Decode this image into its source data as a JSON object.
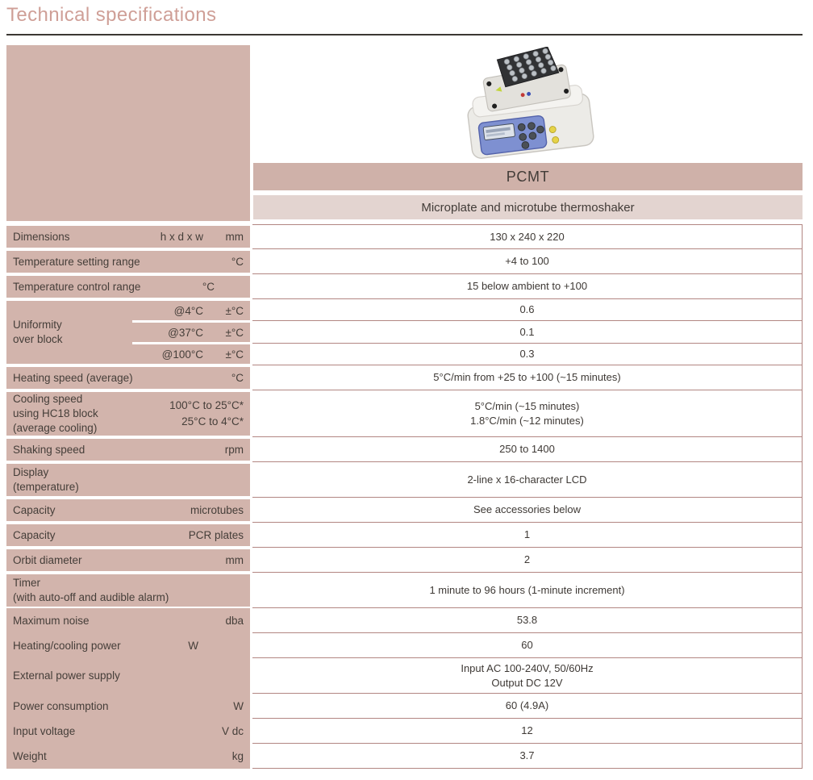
{
  "page": {
    "title": "Technical specifications"
  },
  "product": {
    "name": "PCMT",
    "subtitle": "Microplate and microtube thermoshaker",
    "image": "thermoshaker-photo"
  },
  "colors": {
    "label_bg": "#d2b4ac",
    "band_dark_bg": "#cfb1a9",
    "band_light_bg": "#e3d4d0",
    "cell_border": "#b28682",
    "title_text": "#cf9f97",
    "text": "#423c38"
  },
  "table": {
    "rows": [
      {
        "label_lines": [
          "Dimensions"
        ],
        "unit1": "h x d x w",
        "unit2": "mm",
        "value_lines": [
          "130 x 240 x 220"
        ]
      },
      {
        "label_lines": [
          "Temperature setting range"
        ],
        "unit2": "°C",
        "value_lines": [
          "+4 to 100"
        ]
      },
      {
        "label_lines": [
          "Temperature control range"
        ],
        "unit2": "°C",
        "shift": 36,
        "value_lines": [
          "15 below ambient to +100"
        ]
      },
      {
        "label_lines": [
          "Uniformity",
          "over block"
        ],
        "subrows": [
          {
            "unit1": "@4°C",
            "unit2": "±°C",
            "value": "0.6"
          },
          {
            "unit1": "@37°C",
            "unit2": "±°C",
            "value": "0.1"
          },
          {
            "unit1": "@100°C",
            "unit2": "±°C",
            "value": "0.3"
          }
        ]
      },
      {
        "label_lines": [
          "Heating speed (average)"
        ],
        "unit2": "°C",
        "value_lines": [
          "5°C/min from +25 to +100 (~15 minutes)"
        ]
      },
      {
        "label_lines": [
          "Cooling speed",
          "using HC18 block",
          "(average cooling)"
        ],
        "unit_lines": [
          "100°C to 25°C*",
          "25°C to 4°C*"
        ],
        "value_lines": [
          "5°C/min (~15 minutes)",
          "1.8°C/min (~12 minutes)"
        ]
      },
      {
        "label_lines": [
          "Shaking speed"
        ],
        "unit2": "rpm",
        "value_lines": [
          "250 to 1400"
        ]
      },
      {
        "label_lines": [
          "Display",
          "(temperature)"
        ],
        "value_lines": [
          "2-line x 16-character LCD"
        ]
      },
      {
        "label_lines": [
          "Capacity"
        ],
        "unit2": "microtubes",
        "value_lines": [
          "See accessories below"
        ]
      },
      {
        "label_lines": [
          "Capacity"
        ],
        "unit2": "PCR plates",
        "value_lines": [
          "1"
        ]
      },
      {
        "label_lines": [
          "Orbit diameter"
        ],
        "unit2": "mm",
        "value_lines": [
          "2"
        ]
      },
      {
        "label_lines": [
          "Timer",
          "(with auto-off and audible alarm)"
        ],
        "value_lines": [
          "1 minute to 96 hours (1-minute increment)"
        ]
      },
      {
        "label_lines": [
          "Maximum noise"
        ],
        "unit2": "dba",
        "tight": true,
        "value_lines": [
          "53.8"
        ]
      },
      {
        "label_lines": [
          "Heating/cooling power"
        ],
        "unit2": "W",
        "shift": 56,
        "tight": true,
        "value_lines": [
          "60"
        ]
      },
      {
        "label_lines": [
          "External power supply"
        ],
        "tight": true,
        "value_lines": [
          "Input AC 100-240V, 50/60Hz",
          "Output DC 12V"
        ]
      },
      {
        "label_lines": [
          "Power consumption"
        ],
        "unit2": "W",
        "tight": true,
        "value_lines": [
          "60 (4.9A)"
        ]
      },
      {
        "label_lines": [
          "Input voltage"
        ],
        "unit2": "V dc",
        "tight": true,
        "value_lines": [
          "12"
        ]
      },
      {
        "label_lines": [
          "Weight"
        ],
        "unit2": "kg",
        "tight": true,
        "value_lines": [
          "3.7"
        ]
      }
    ]
  }
}
